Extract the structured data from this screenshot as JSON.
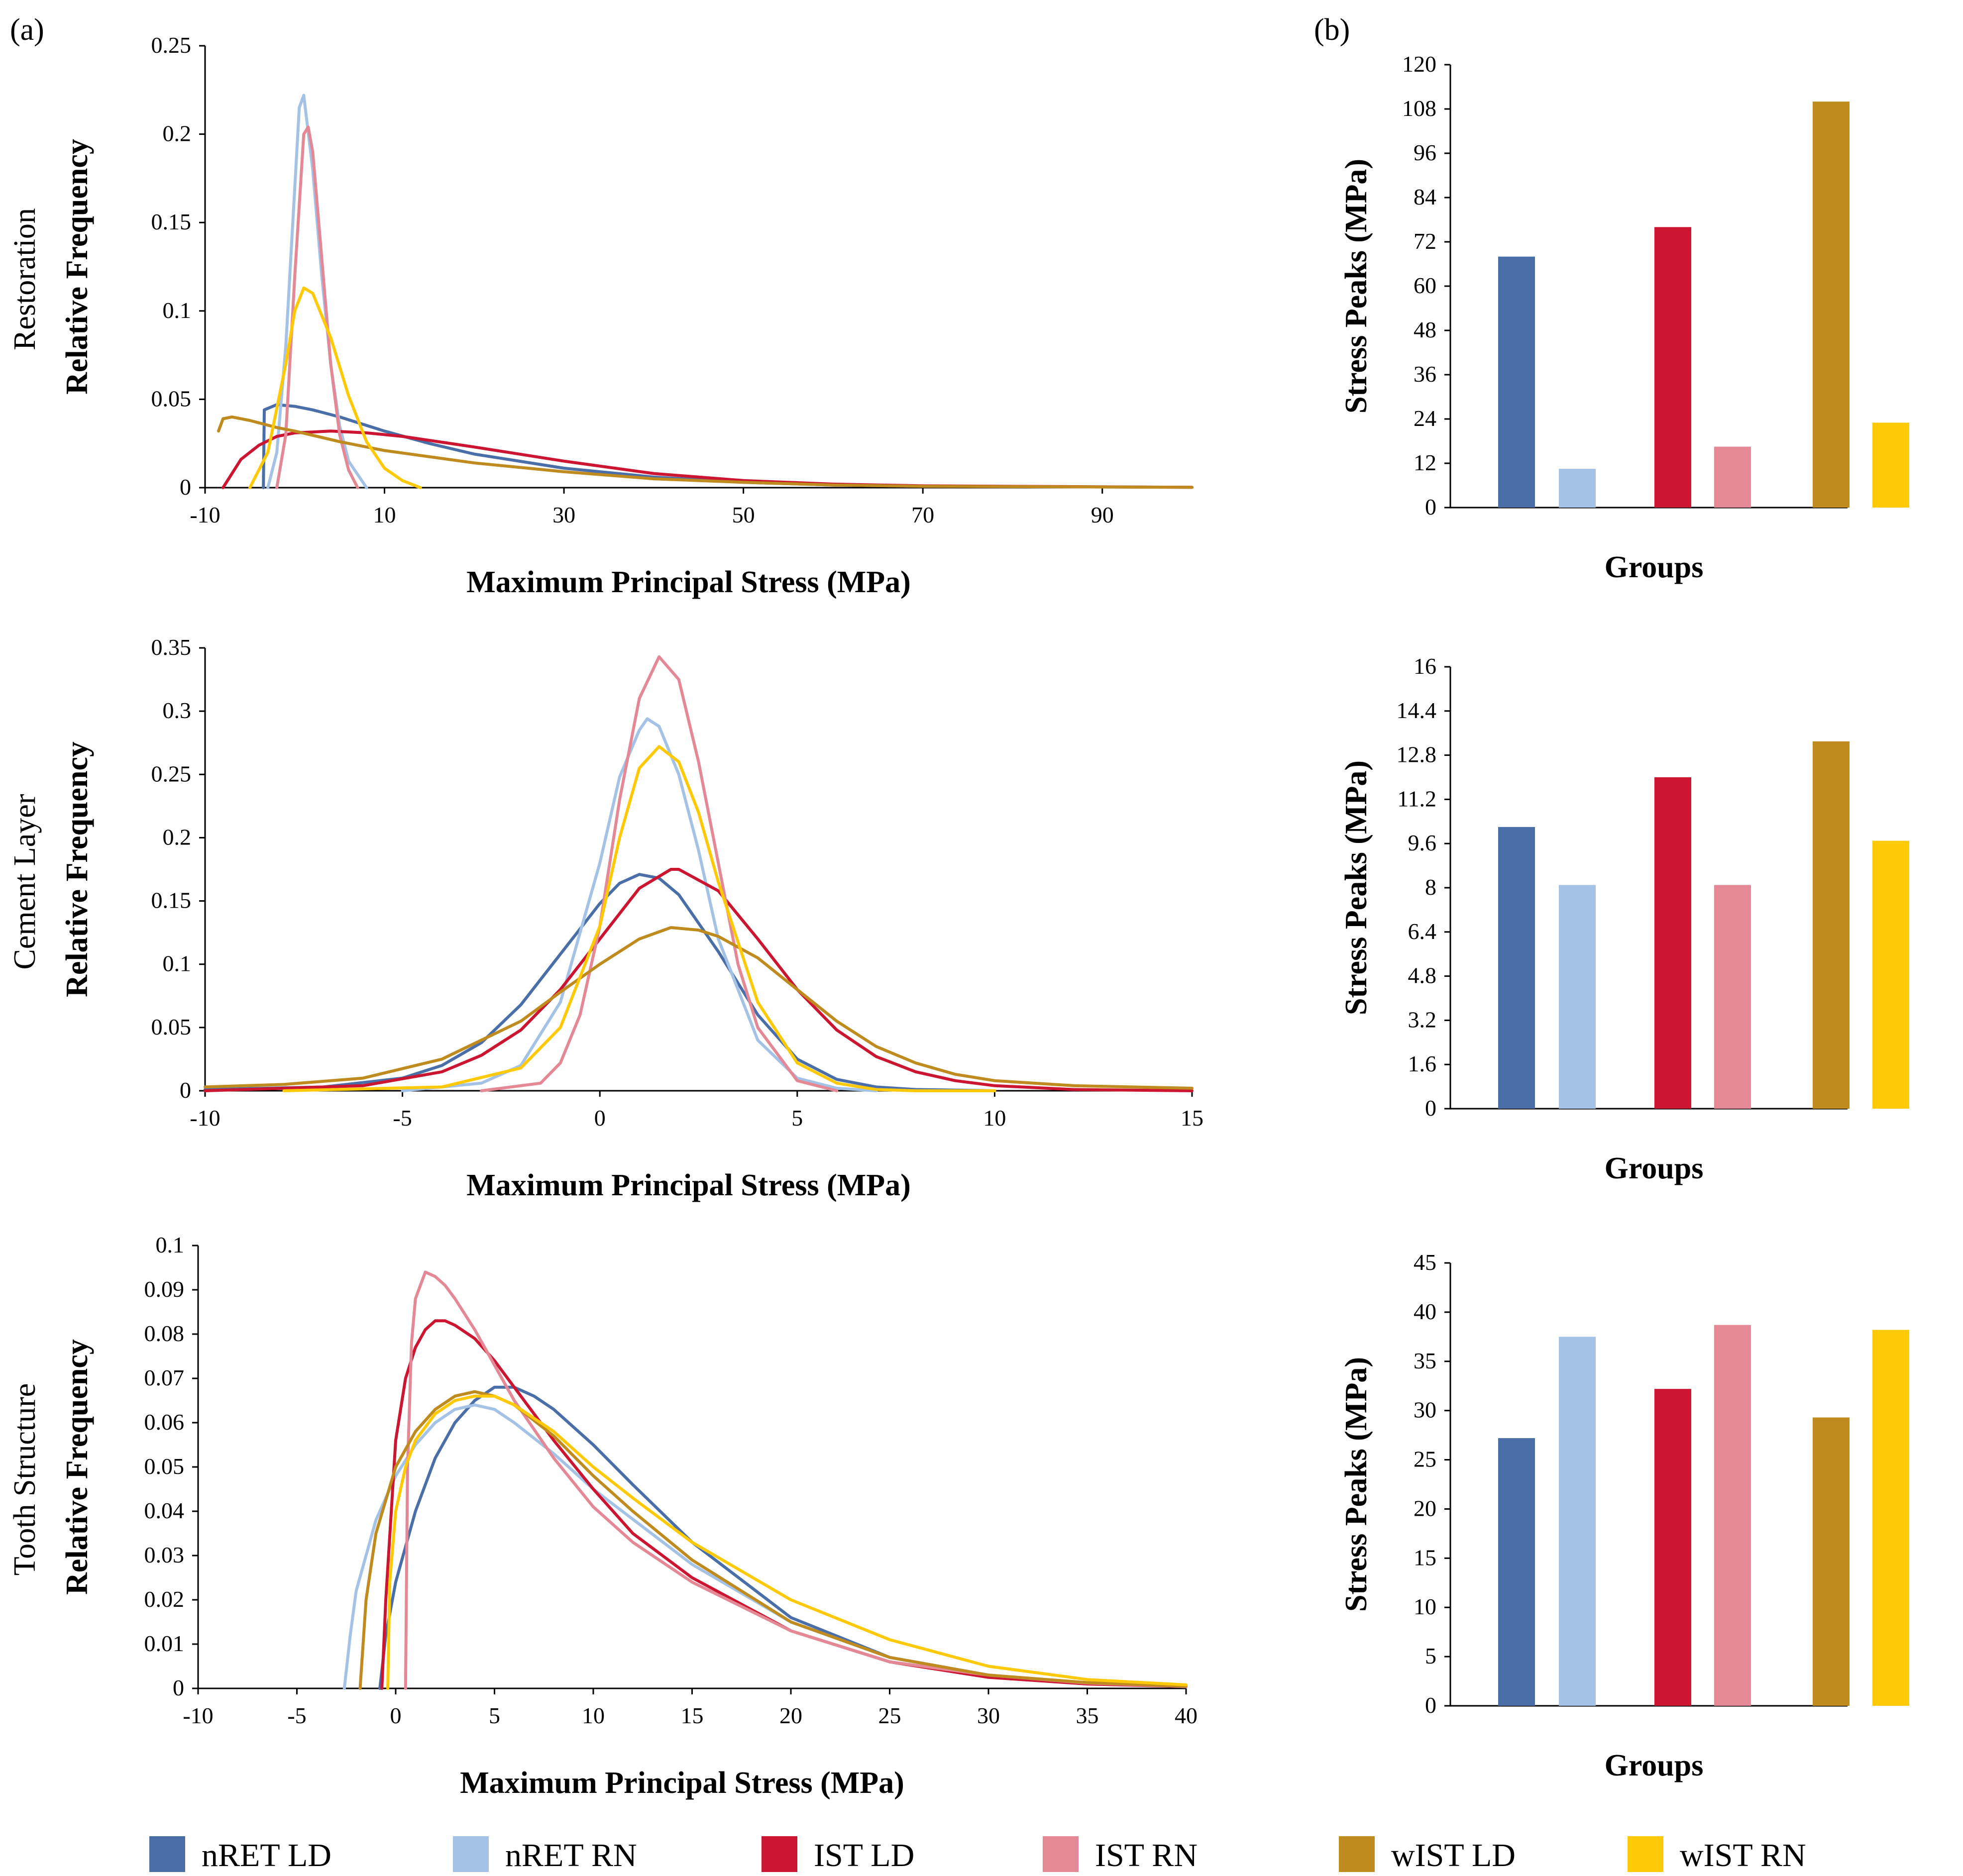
{
  "panel_labels": {
    "a": "(a)",
    "b": "(b)"
  },
  "series_colors": [
    "#4a6ea8",
    "#a3c2e6",
    "#cc1530",
    "#e58896",
    "#c08b1e",
    "#ffc906"
  ],
  "legend": [
    {
      "label": "nRET LD",
      "color": "#4a6ea8"
    },
    {
      "label": "nRET RN",
      "color": "#a3c2e6"
    },
    {
      "label": "IST LD",
      "color": "#cc1530"
    },
    {
      "label": "IST RN",
      "color": "#e58896"
    },
    {
      "label": "wIST LD",
      "color": "#c08b1e"
    },
    {
      "label": "wIST RN",
      "color": "#ffc906"
    }
  ],
  "chart_data": [
    {
      "type": "line",
      "panel": "(a)",
      "row_label": "Restoration",
      "title": "",
      "xlabel": "Maximum Principal Stress (MPa)",
      "ylabel": "Relative Frequency",
      "xlim": [
        -10,
        100
      ],
      "ylim": [
        0,
        0.25
      ],
      "xticks": [
        "-10",
        "10",
        "30",
        "50",
        "70",
        "90"
      ],
      "yticks": [
        "0",
        "0.05",
        "0.1",
        "0.15",
        "0.2",
        "0.25"
      ],
      "series": [
        {
          "name": "nRET LD",
          "color": "#4a6ea8",
          "x": [
            -3.5,
            -3.4,
            -2,
            0,
            2,
            5,
            10,
            15,
            20,
            30,
            40,
            50,
            60,
            70,
            100
          ],
          "y": [
            0,
            0.044,
            0.047,
            0.046,
            0.044,
            0.04,
            0.032,
            0.025,
            0.019,
            0.011,
            0.006,
            0.003,
            0.0015,
            0.0008,
            0.0002
          ]
        },
        {
          "name": "nRET RN",
          "color": "#a3c2e6",
          "x": [
            -3,
            -2,
            -1,
            0,
            0.5,
            1,
            2,
            3,
            4,
            5,
            6,
            8
          ],
          "y": [
            0,
            0.02,
            0.08,
            0.17,
            0.215,
            0.222,
            0.18,
            0.12,
            0.07,
            0.035,
            0.015,
            0
          ]
        },
        {
          "name": "IST LD",
          "color": "#cc1530",
          "x": [
            -8,
            -6,
            -4,
            -2,
            0,
            4,
            8,
            12,
            16,
            20,
            30,
            40,
            50,
            60,
            70,
            100
          ],
          "y": [
            0,
            0.016,
            0.024,
            0.029,
            0.031,
            0.032,
            0.031,
            0.029,
            0.026,
            0.023,
            0.015,
            0.008,
            0.004,
            0.002,
            0.001,
            0.0002
          ]
        },
        {
          "name": "IST RN",
          "color": "#e58896",
          "x": [
            -2,
            -1,
            0,
            1,
            1.5,
            2,
            3,
            4,
            5,
            6,
            7
          ],
          "y": [
            0,
            0.03,
            0.12,
            0.2,
            0.204,
            0.19,
            0.13,
            0.07,
            0.03,
            0.01,
            0
          ]
        },
        {
          "name": "wIST LD",
          "color": "#c08b1e",
          "x": [
            -8.5,
            -8,
            -7,
            -5,
            -2,
            0,
            5,
            10,
            20,
            30,
            40,
            50,
            60,
            70,
            100
          ],
          "y": [
            0.032,
            0.039,
            0.04,
            0.038,
            0.034,
            0.032,
            0.026,
            0.021,
            0.014,
            0.009,
            0.005,
            0.003,
            0.0015,
            0.0008,
            0.0002
          ]
        },
        {
          "name": "wIST RN",
          "color": "#ffc906",
          "x": [
            -5,
            -3,
            -1,
            0,
            1,
            2,
            4,
            6,
            8,
            10,
            12,
            14
          ],
          "y": [
            0,
            0.02,
            0.07,
            0.1,
            0.113,
            0.11,
            0.085,
            0.052,
            0.026,
            0.011,
            0.004,
            0
          ]
        }
      ]
    },
    {
      "type": "line",
      "panel": "(a)",
      "row_label": "Cement Layer",
      "title": "",
      "xlabel": "Maximum Principal Stress (MPa)",
      "ylabel": "Relative Frequency",
      "xlim": [
        -10,
        15
      ],
      "ylim": [
        0,
        0.35
      ],
      "xticks": [
        "-10",
        "-5",
        "0",
        "5",
        "10",
        "15"
      ],
      "yticks": [
        "0",
        "0.05",
        "0.1",
        "0.15",
        "0.2",
        "0.25",
        "0.3",
        "0.35"
      ],
      "series": [
        {
          "name": "nRET LD",
          "color": "#4a6ea8",
          "x": [
            -10,
            -7,
            -5,
            -4,
            -3,
            -2,
            -1,
            0,
            0.5,
            1,
            1.5,
            2,
            3,
            4,
            5,
            6,
            7,
            8,
            10
          ],
          "y": [
            0.001,
            0.003,
            0.01,
            0.02,
            0.038,
            0.068,
            0.108,
            0.148,
            0.164,
            0.171,
            0.168,
            0.155,
            0.11,
            0.06,
            0.025,
            0.009,
            0.003,
            0.001,
            0
          ]
        },
        {
          "name": "nRET RN",
          "color": "#a3c2e6",
          "x": [
            -5,
            -3,
            -2,
            -1,
            0,
            0.5,
            1,
            1.2,
            1.5,
            2,
            2.5,
            3,
            4,
            5,
            6,
            7
          ],
          "y": [
            0,
            0.006,
            0.02,
            0.07,
            0.18,
            0.248,
            0.285,
            0.294,
            0.288,
            0.25,
            0.19,
            0.12,
            0.04,
            0.01,
            0.002,
            0
          ]
        },
        {
          "name": "IST LD",
          "color": "#cc1530",
          "x": [
            -10,
            -6,
            -4,
            -3,
            -2,
            -1,
            0,
            1,
            1.8,
            2,
            3,
            4,
            5,
            6,
            7,
            8,
            9,
            10,
            12,
            15
          ],
          "y": [
            0,
            0.004,
            0.015,
            0.028,
            0.048,
            0.08,
            0.12,
            0.16,
            0.175,
            0.175,
            0.158,
            0.12,
            0.08,
            0.048,
            0.027,
            0.015,
            0.008,
            0.004,
            0.001,
            0
          ]
        },
        {
          "name": "IST RN",
          "color": "#e58896",
          "x": [
            -3,
            -1.5,
            -1,
            -0.5,
            0,
            0.5,
            1,
            1.5,
            2,
            2.5,
            3,
            3.5,
            4,
            5,
            6
          ],
          "y": [
            0,
            0.006,
            0.022,
            0.06,
            0.13,
            0.23,
            0.31,
            0.343,
            0.325,
            0.26,
            0.18,
            0.1,
            0.05,
            0.008,
            0
          ]
        },
        {
          "name": "wIST LD",
          "color": "#c08b1e",
          "x": [
            -10,
            -8,
            -6,
            -4,
            -2,
            -1,
            0,
            1,
            1.8,
            2.5,
            3,
            4,
            5,
            6,
            7,
            8,
            9,
            10,
            12,
            15
          ],
          "y": [
            0.003,
            0.005,
            0.01,
            0.025,
            0.055,
            0.078,
            0.1,
            0.12,
            0.129,
            0.127,
            0.122,
            0.105,
            0.08,
            0.055,
            0.035,
            0.022,
            0.013,
            0.008,
            0.004,
            0.002
          ]
        },
        {
          "name": "wIST RN",
          "color": "#ffc906",
          "x": [
            -8,
            -4,
            -2,
            -1,
            0,
            0.5,
            1,
            1.5,
            2,
            2.5,
            3,
            4,
            5,
            6,
            7,
            8,
            10
          ],
          "y": [
            0,
            0.003,
            0.018,
            0.05,
            0.13,
            0.2,
            0.255,
            0.272,
            0.26,
            0.22,
            0.165,
            0.07,
            0.022,
            0.006,
            0.001,
            0,
            0
          ]
        }
      ]
    },
    {
      "type": "line",
      "panel": "(a)",
      "row_label": "Tooth Structure",
      "title": "",
      "xlabel": "Maximum Principal Stress (MPa)",
      "ylabel": "Relative Frequency",
      "xlim": [
        -10,
        40
      ],
      "ylim": [
        0,
        0.1
      ],
      "xticks": [
        "-10",
        "-5",
        "0",
        "5",
        "10",
        "15",
        "20",
        "25",
        "30",
        "35",
        "40"
      ],
      "yticks": [
        "0",
        "0.01",
        "0.02",
        "0.03",
        "0.04",
        "0.05",
        "0.06",
        "0.07",
        "0.08",
        "0.09",
        "0.1"
      ],
      "series": [
        {
          "name": "nRET LD",
          "color": "#4a6ea8",
          "x": [
            -0.8,
            -0.5,
            0,
            1,
            2,
            3,
            4,
            5,
            6,
            7,
            8,
            10,
            12,
            15,
            20,
            25,
            30,
            35,
            40
          ],
          "y": [
            0,
            0.012,
            0.024,
            0.04,
            0.052,
            0.06,
            0.065,
            0.068,
            0.068,
            0.066,
            0.063,
            0.055,
            0.046,
            0.033,
            0.016,
            0.007,
            0.003,
            0.0012,
            0.0004
          ]
        },
        {
          "name": "nRET RN",
          "color": "#a3c2e6",
          "x": [
            -2.6,
            -2.3,
            -2,
            -1,
            0,
            1,
            2,
            3,
            4,
            5,
            6,
            8,
            10,
            15,
            20,
            25,
            30,
            35,
            40
          ],
          "y": [
            0,
            0.012,
            0.022,
            0.038,
            0.048,
            0.055,
            0.06,
            0.063,
            0.064,
            0.063,
            0.06,
            0.053,
            0.045,
            0.028,
            0.015,
            0.007,
            0.003,
            0.0012,
            0.0004
          ]
        },
        {
          "name": "IST LD",
          "color": "#cc1530",
          "x": [
            -0.7,
            -0.5,
            0,
            0.5,
            1,
            1.5,
            2,
            2.5,
            3,
            4,
            5,
            6,
            8,
            10,
            12,
            15,
            20,
            25,
            30,
            35,
            40
          ],
          "y": [
            0,
            0.02,
            0.056,
            0.07,
            0.077,
            0.081,
            0.083,
            0.083,
            0.082,
            0.079,
            0.074,
            0.068,
            0.056,
            0.045,
            0.035,
            0.025,
            0.013,
            0.006,
            0.0025,
            0.001,
            0.0004
          ]
        },
        {
          "name": "IST RN",
          "color": "#e58896",
          "x": [
            0.5,
            0.6,
            0.8,
            1,
            1.5,
            2,
            2.5,
            3,
            4,
            5,
            6,
            8,
            10,
            12,
            15,
            20,
            25,
            30,
            35,
            40
          ],
          "y": [
            0,
            0.05,
            0.078,
            0.088,
            0.094,
            0.093,
            0.091,
            0.088,
            0.081,
            0.073,
            0.065,
            0.052,
            0.041,
            0.033,
            0.024,
            0.013,
            0.006,
            0.003,
            0.0012,
            0.0004
          ]
        },
        {
          "name": "wIST LD",
          "color": "#c08b1e",
          "x": [
            -1.8,
            -1.5,
            -1,
            0,
            1,
            2,
            3,
            4,
            5,
            6,
            8,
            10,
            12,
            15,
            20,
            25,
            30,
            35,
            40
          ],
          "y": [
            0,
            0.02,
            0.035,
            0.05,
            0.058,
            0.063,
            0.066,
            0.067,
            0.066,
            0.064,
            0.057,
            0.048,
            0.04,
            0.029,
            0.015,
            0.007,
            0.003,
            0.0013,
            0.0005
          ]
        },
        {
          "name": "wIST RN",
          "color": "#ffc906",
          "x": [
            -0.4,
            -0.3,
            0,
            0.5,
            1,
            2,
            3,
            4,
            5,
            6,
            8,
            10,
            12,
            15,
            20,
            25,
            30,
            35,
            40
          ],
          "y": [
            0,
            0.024,
            0.04,
            0.05,
            0.056,
            0.062,
            0.065,
            0.066,
            0.066,
            0.064,
            0.058,
            0.05,
            0.043,
            0.033,
            0.02,
            0.011,
            0.005,
            0.002,
            0.0008
          ]
        }
      ]
    },
    {
      "type": "bar",
      "panel": "(b)",
      "row_label": "Restoration",
      "title": "",
      "xlabel": "Groups",
      "ylabel": "Stress Peaks (MPa)",
      "ylim": [
        0,
        120
      ],
      "yticks": [
        "0",
        "12",
        "24",
        "36",
        "48",
        "60",
        "72",
        "84",
        "96",
        "108",
        "120"
      ],
      "categories": [
        "nRET LD",
        "nRET RN",
        "IST LD",
        "IST RN",
        "wIST LD",
        "wIST RN"
      ],
      "values": [
        68,
        10.5,
        76,
        16.5,
        110,
        23
      ]
    },
    {
      "type": "bar",
      "panel": "(b)",
      "row_label": "Cement Layer",
      "title": "",
      "xlabel": "Groups",
      "ylabel": "Stress Peaks (MPa)",
      "ylim": [
        0,
        16
      ],
      "yticks": [
        "0",
        "1.6",
        "3.2",
        "4.8",
        "6.4",
        "8",
        "9.6",
        "11.2",
        "12.8",
        "14.4",
        "16"
      ],
      "categories": [
        "nRET LD",
        "nRET RN",
        "IST LD",
        "IST RN",
        "wIST LD",
        "wIST RN"
      ],
      "values": [
        10.2,
        8.1,
        12,
        8.1,
        13.3,
        9.7
      ]
    },
    {
      "type": "bar",
      "panel": "(b)",
      "row_label": "Tooth Structure",
      "title": "",
      "xlabel": "Groups",
      "ylabel": "Stress Peaks (MPa)",
      "ylim": [
        0,
        45
      ],
      "yticks": [
        "0",
        "5",
        "10",
        "15",
        "20",
        "25",
        "30",
        "35",
        "40",
        "45"
      ],
      "categories": [
        "nRET LD",
        "nRET RN",
        "IST LD",
        "IST RN",
        "wIST LD",
        "wIST RN"
      ],
      "values": [
        27.2,
        37.5,
        32.2,
        38.7,
        29.3,
        38.2
      ]
    }
  ]
}
